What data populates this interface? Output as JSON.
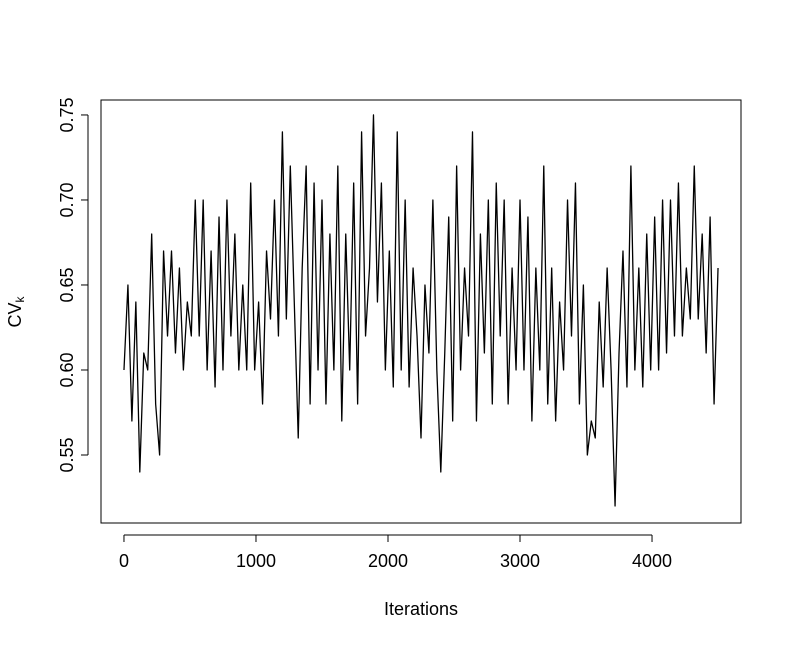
{
  "chart_data": {
    "type": "line",
    "x_label": "Iterations",
    "y_label": "CV",
    "y_label_subscript": "k",
    "x": [
      0,
      30,
      60,
      90,
      120,
      150,
      180,
      210,
      240,
      270,
      300,
      330,
      360,
      390,
      420,
      450,
      480,
      510,
      540,
      570,
      600,
      630,
      660,
      690,
      720,
      750,
      780,
      810,
      840,
      870,
      900,
      930,
      960,
      990,
      1020,
      1050,
      1080,
      1110,
      1140,
      1170,
      1200,
      1230,
      1260,
      1290,
      1320,
      1350,
      1380,
      1410,
      1440,
      1470,
      1500,
      1530,
      1560,
      1590,
      1620,
      1650,
      1680,
      1710,
      1740,
      1770,
      1800,
      1830,
      1860,
      1890,
      1920,
      1950,
      1980,
      2010,
      2040,
      2070,
      2100,
      2130,
      2160,
      2190,
      2220,
      2250,
      2280,
      2310,
      2340,
      2370,
      2400,
      2430,
      2460,
      2490,
      2520,
      2550,
      2580,
      2610,
      2640,
      2670,
      2700,
      2730,
      2760,
      2790,
      2820,
      2850,
      2880,
      2910,
      2940,
      2970,
      3000,
      3030,
      3060,
      3090,
      3120,
      3150,
      3180,
      3210,
      3240,
      3270,
      3300,
      3330,
      3360,
      3390,
      3420,
      3450,
      3480,
      3510,
      3540,
      3570,
      3600,
      3630,
      3660,
      3690,
      3720,
      3750,
      3780,
      3810,
      3840,
      3870,
      3900,
      3930,
      3960,
      3990,
      4020,
      4050,
      4080,
      4110,
      4140,
      4170,
      4200,
      4230,
      4260,
      4290,
      4320,
      4350,
      4380,
      4410,
      4440,
      4470,
      4500
    ],
    "values": [
      0.6,
      0.65,
      0.57,
      0.64,
      0.54,
      0.61,
      0.6,
      0.68,
      0.58,
      0.55,
      0.67,
      0.62,
      0.67,
      0.61,
      0.66,
      0.6,
      0.64,
      0.62,
      0.7,
      0.62,
      0.7,
      0.6,
      0.67,
      0.59,
      0.69,
      0.6,
      0.7,
      0.62,
      0.68,
      0.6,
      0.65,
      0.6,
      0.71,
      0.6,
      0.64,
      0.58,
      0.67,
      0.63,
      0.7,
      0.62,
      0.74,
      0.63,
      0.72,
      0.64,
      0.56,
      0.66,
      0.72,
      0.58,
      0.71,
      0.6,
      0.7,
      0.58,
      0.68,
      0.6,
      0.72,
      0.57,
      0.68,
      0.6,
      0.71,
      0.58,
      0.74,
      0.62,
      0.66,
      0.75,
      0.64,
      0.71,
      0.6,
      0.67,
      0.59,
      0.74,
      0.6,
      0.7,
      0.59,
      0.66,
      0.62,
      0.56,
      0.65,
      0.61,
      0.7,
      0.6,
      0.54,
      0.61,
      0.69,
      0.57,
      0.72,
      0.6,
      0.66,
      0.62,
      0.74,
      0.57,
      0.68,
      0.61,
      0.7,
      0.58,
      0.71,
      0.62,
      0.7,
      0.58,
      0.66,
      0.6,
      0.7,
      0.6,
      0.69,
      0.57,
      0.66,
      0.6,
      0.72,
      0.58,
      0.66,
      0.57,
      0.64,
      0.6,
      0.7,
      0.62,
      0.71,
      0.58,
      0.65,
      0.55,
      0.57,
      0.56,
      0.64,
      0.59,
      0.66,
      0.6,
      0.52,
      0.61,
      0.67,
      0.59,
      0.72,
      0.6,
      0.66,
      0.59,
      0.68,
      0.6,
      0.69,
      0.6,
      0.7,
      0.61,
      0.7,
      0.62,
      0.71,
      0.62,
      0.66,
      0.63,
      0.72,
      0.63,
      0.68,
      0.61,
      0.69,
      0.58,
      0.66
    ],
    "color": "#000000",
    "xlim": [
      -174,
      4674
    ],
    "ylim": [
      0.51,
      0.7588
    ],
    "xticks": [
      0,
      1000,
      2000,
      3000,
      4000
    ],
    "yticks": [
      0.55,
      {
        "value": 0.6,
        "label": "0.60"
      },
      0.65,
      {
        "value": 0.7,
        "label": "0.70"
      },
      0.75
    ],
    "grid": false
  }
}
